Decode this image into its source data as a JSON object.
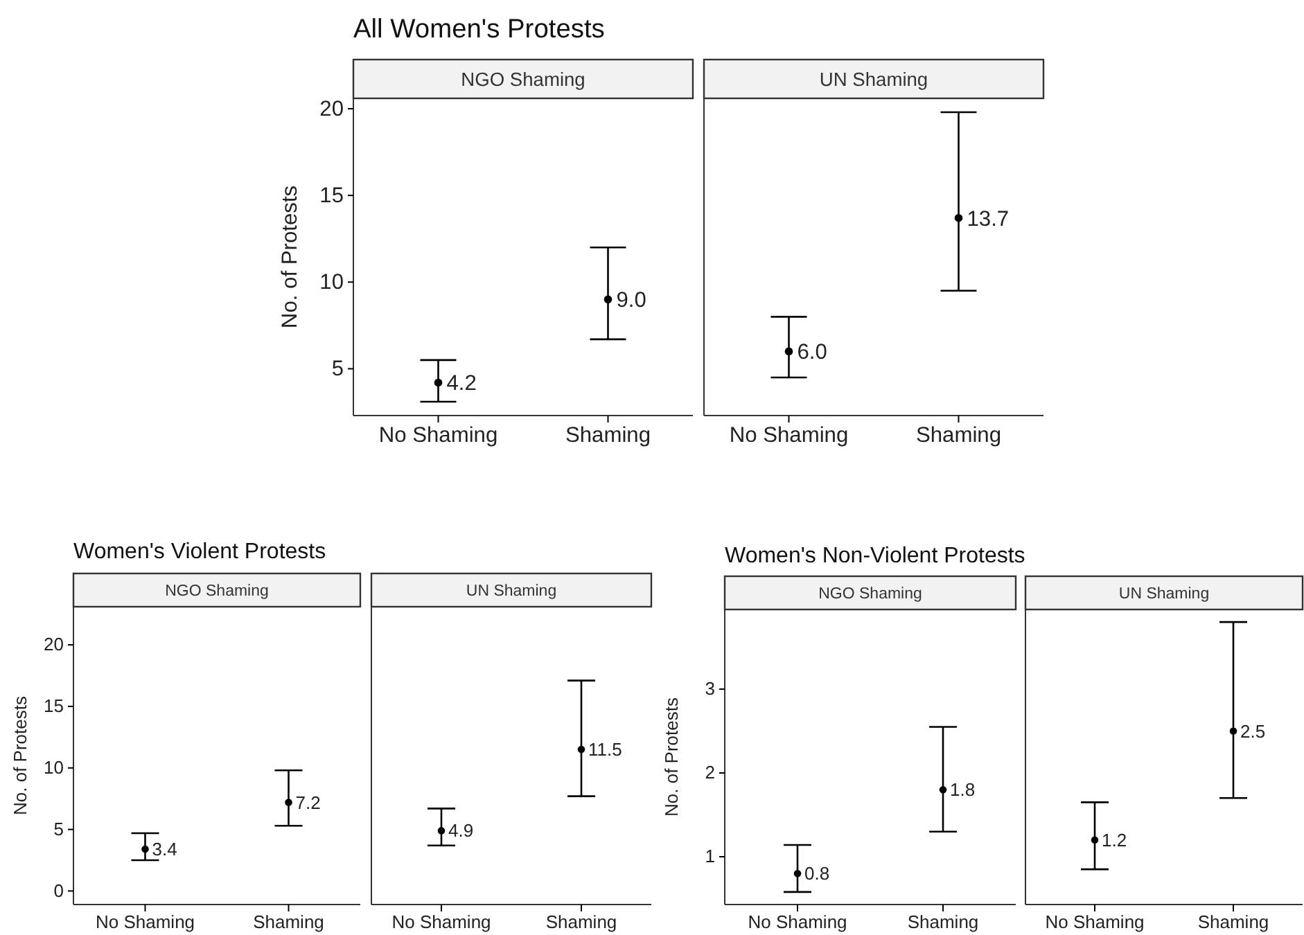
{
  "chart_data": [
    {
      "type": "scatter",
      "title": "All Women's Protests",
      "subtitle": "NGO Shaming",
      "ylabel": "No. of Protests",
      "categories": [
        "No Shaming",
        "Shaming"
      ],
      "values": [
        4.2,
        9.0
      ],
      "value_labels": [
        "4.2",
        "9.0"
      ],
      "errors": [
        [
          3.1,
          5.5
        ],
        [
          6.7,
          12.0
        ]
      ],
      "color": "#000000",
      "marker": "circle",
      "ylim": [
        2.3,
        20.6
      ],
      "yticks": [
        5,
        10,
        15,
        20
      ],
      "grid": false
    },
    {
      "type": "scatter",
      "subtitle": "UN Shaming",
      "categories": [
        "No Shaming",
        "Shaming"
      ],
      "values": [
        6.0,
        13.7
      ],
      "value_labels": [
        "6.0",
        "13.7"
      ],
      "errors": [
        [
          4.5,
          8.0
        ],
        [
          9.5,
          19.8
        ]
      ],
      "color": "#000000",
      "marker": "circle",
      "ylim": [
        2.3,
        20.6
      ],
      "yticks": [
        5,
        10,
        15,
        20
      ],
      "tick_labels": "x",
      "grid": false
    },
    {
      "type": "scatter",
      "title": "Women's Violent Protests",
      "subtitle": "NGO Shaming",
      "ylabel": "No. of Protests",
      "categories": [
        "No Shaming",
        "Shaming"
      ],
      "values": [
        3.4,
        7.2
      ],
      "value_labels": [
        "3.4",
        "7.2"
      ],
      "errors": [
        [
          2.5,
          4.7
        ],
        [
          5.3,
          9.8
        ]
      ],
      "color": "#000000",
      "marker": "circle",
      "ylim": [
        -1.1,
        23.1
      ],
      "yticks": [
        0,
        5,
        10,
        15,
        20
      ],
      "grid": false
    },
    {
      "type": "scatter",
      "subtitle": "UN Shaming",
      "categories": [
        "No Shaming",
        "Shaming"
      ],
      "values": [
        4.9,
        11.5
      ],
      "value_labels": [
        "4.9",
        "11.5"
      ],
      "errors": [
        [
          3.7,
          6.7
        ],
        [
          7.7,
          17.1
        ]
      ],
      "color": "#000000",
      "marker": "circle",
      "ylim": [
        -1.1,
        23.1
      ],
      "yticks": [
        0,
        5,
        10,
        15,
        20
      ],
      "tick_labels": "x",
      "grid": false
    },
    {
      "type": "scatter",
      "title": "Women's Non-Violent Protests",
      "subtitle": "NGO Shaming",
      "ylabel": "No. of Protests",
      "categories": [
        "No Shaming",
        "Shaming"
      ],
      "values": [
        0.8,
        1.8
      ],
      "value_labels": [
        "0.8",
        "1.8"
      ],
      "errors": [
        [
          0.58,
          1.14
        ],
        [
          1.3,
          2.55
        ]
      ],
      "color": "#000000",
      "marker": "circle",
      "ylim": [
        0.43,
        3.95
      ],
      "yticks": [
        1,
        2,
        3
      ],
      "grid": false
    },
    {
      "type": "scatter",
      "subtitle": "UN Shaming",
      "categories": [
        "No Shaming",
        "Shaming"
      ],
      "values": [
        1.2,
        2.5
      ],
      "value_labels": [
        "1.2",
        "2.5"
      ],
      "errors": [
        [
          0.85,
          1.65
        ],
        [
          1.7,
          3.8
        ]
      ],
      "color": "#000000",
      "marker": "circle",
      "ylim": [
        0.43,
        3.95
      ],
      "yticks": [
        1,
        2,
        3
      ],
      "tick_labels": "x",
      "grid": false
    }
  ]
}
